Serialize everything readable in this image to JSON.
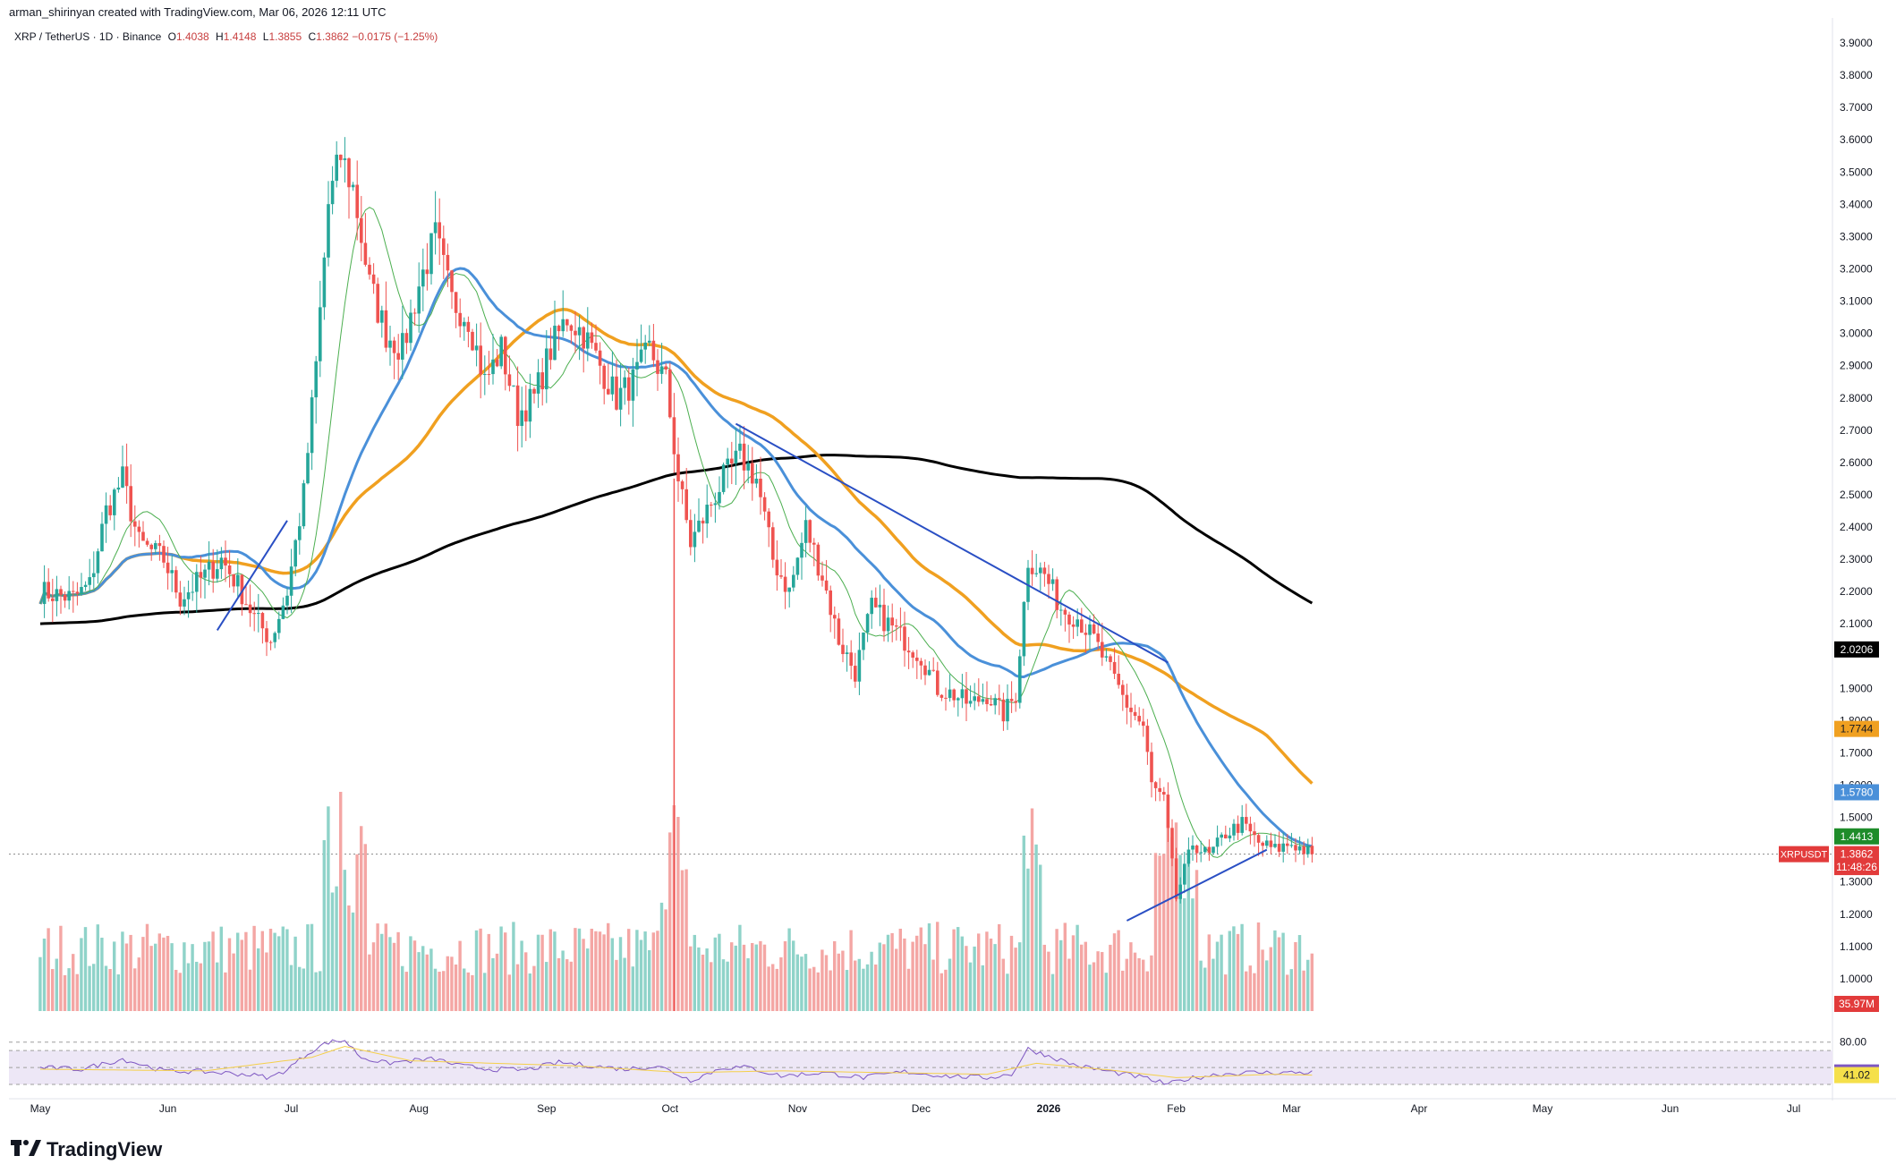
{
  "header": {
    "created_by": "arman_shirinyan created with TradingView.com, Mar 06, 2026 12:11 UTC"
  },
  "legend": {
    "symbol": "XRP / TetherUS · 1D · Binance",
    "o_label": "O",
    "o_value": "1.4038",
    "h_label": "H",
    "h_value": "1.4148",
    "l_label": "L",
    "l_value": "1.3855",
    "c_label": "C",
    "c_value": "1.3862",
    "change": "−0.0175 (−1.25%)"
  },
  "brand": {
    "logo_icon": "tradingview-logo-icon",
    "name": "TradingView"
  },
  "colors": {
    "up": "#26a69a",
    "down": "#ef5350",
    "ma_fast": "#4caf50",
    "ma_mid": "#4a90d9",
    "ma_slow": "#f0a020",
    "ma_long": "#000000",
    "rsi": "#7e57c2",
    "trendline": "#2a4fc4"
  },
  "chart_data": {
    "type": "candlestick",
    "price_axis": {
      "ylim": [
        0.9,
        3.95
      ],
      "ticks": [
        "3.9000",
        "3.8000",
        "3.7000",
        "3.6000",
        "3.5000",
        "3.4000",
        "3.3000",
        "3.2000",
        "3.1000",
        "3.0000",
        "2.9000",
        "2.8000",
        "2.7000",
        "2.6000",
        "2.5000",
        "2.4000",
        "2.3000",
        "2.2000",
        "2.1000",
        "1.9000",
        "1.8000",
        "1.7000",
        "1.6000",
        "1.5000",
        "1.3000",
        "1.2000",
        "1.1000",
        "1.0000"
      ]
    },
    "time_axis": {
      "labels": [
        "May",
        "Jun",
        "Jul",
        "Aug",
        "Sep",
        "Oct",
        "Nov",
        "Dec",
        "2026",
        "Feb",
        "Mar",
        "Apr",
        "May",
        "Jun",
        "Jul"
      ],
      "label_day_index": [
        0,
        31,
        61,
        92,
        123,
        153,
        184,
        214,
        245,
        276,
        304,
        335,
        365,
        396,
        426
      ],
      "last_day_index": 309
    },
    "badges": [
      {
        "text": "2.0206",
        "value": 2.0206,
        "color": "#000000",
        "fg": "#ffffff"
      },
      {
        "text": "1.7744",
        "value": 1.7744,
        "color": "#f0a020",
        "fg": "#131722"
      },
      {
        "text": "1.5780",
        "value": 1.578,
        "color": "#4a90d9",
        "fg": "#ffffff"
      },
      {
        "text": "1.4413",
        "value": 1.4413,
        "color": "#1e8c2a",
        "fg": "#ffffff"
      },
      {
        "text": "1.3862",
        "value": 1.3862,
        "color": "#e23b3b",
        "fg": "#ffffff"
      },
      {
        "text": "11:48:26",
        "value": 1.3462,
        "color": "#e23b3b",
        "fg": "#ffffff"
      }
    ],
    "symbol_badge": {
      "text": "XRPUSDT",
      "value": 1.3862,
      "color": "#e23b3b"
    },
    "volume_badge": {
      "text": "35.97M",
      "color": "#e23b3b"
    },
    "rsi": {
      "levels": [
        "80.00"
      ],
      "badges": [
        {
          "text": "44.14",
          "value": 44.14,
          "color": "#7e57c2",
          "fg": "#ffffff"
        },
        {
          "text": "41.02",
          "value": 41.02,
          "color": "#f5e04a",
          "fg": "#131722"
        }
      ]
    },
    "price_path": [
      [
        0,
        2.2
      ],
      [
        8,
        2.18
      ],
      [
        12,
        2.22
      ],
      [
        16,
        2.45
      ],
      [
        20,
        2.55
      ],
      [
        24,
        2.35
      ],
      [
        30,
        2.3
      ],
      [
        34,
        2.18
      ],
      [
        40,
        2.25
      ],
      [
        44,
        2.3
      ],
      [
        48,
        2.22
      ],
      [
        52,
        2.12
      ],
      [
        56,
        2.05
      ],
      [
        60,
        2.2
      ],
      [
        64,
        2.5
      ],
      [
        67,
        2.9
      ],
      [
        70,
        3.4
      ],
      [
        73,
        3.55
      ],
      [
        76,
        3.45
      ],
      [
        80,
        3.15
      ],
      [
        84,
        3.0
      ],
      [
        88,
        2.95
      ],
      [
        92,
        3.15
      ],
      [
        96,
        3.3
      ],
      [
        100,
        3.1
      ],
      [
        104,
        3.05
      ],
      [
        108,
        2.85
      ],
      [
        112,
        2.95
      ],
      [
        116,
        2.75
      ],
      [
        120,
        2.8
      ],
      [
        124,
        2.95
      ],
      [
        128,
        3.05
      ],
      [
        132,
        3.0
      ],
      [
        136,
        2.9
      ],
      [
        140,
        2.8
      ],
      [
        144,
        2.85
      ],
      [
        148,
        2.95
      ],
      [
        152,
        2.85
      ],
      [
        155,
        2.55
      ],
      [
        158,
        2.35
      ],
      [
        162,
        2.45
      ],
      [
        166,
        2.55
      ],
      [
        170,
        2.62
      ],
      [
        174,
        2.55
      ],
      [
        178,
        2.3
      ],
      [
        182,
        2.2
      ],
      [
        186,
        2.4
      ],
      [
        190,
        2.25
      ],
      [
        194,
        2.05
      ],
      [
        198,
        1.95
      ],
      [
        202,
        2.15
      ],
      [
        206,
        2.1
      ],
      [
        210,
        2.05
      ],
      [
        214,
        2.0
      ],
      [
        218,
        1.9
      ],
      [
        222,
        1.88
      ],
      [
        226,
        1.85
      ],
      [
        230,
        1.88
      ],
      [
        234,
        1.82
      ],
      [
        237,
        1.88
      ],
      [
        240,
        2.3
      ],
      [
        244,
        2.25
      ],
      [
        248,
        2.15
      ],
      [
        252,
        2.12
      ],
      [
        256,
        2.05
      ],
      [
        260,
        1.95
      ],
      [
        264,
        1.85
      ],
      [
        268,
        1.78
      ],
      [
        270,
        1.6
      ],
      [
        273,
        1.55
      ],
      [
        276,
        1.25
      ],
      [
        280,
        1.42
      ],
      [
        284,
        1.38
      ],
      [
        288,
        1.45
      ],
      [
        292,
        1.48
      ],
      [
        296,
        1.42
      ],
      [
        300,
        1.4
      ],
      [
        304,
        1.42
      ],
      [
        309,
        1.386
      ]
    ],
    "rsi_path": [
      [
        0,
        50
      ],
      [
        10,
        48
      ],
      [
        20,
        60
      ],
      [
        30,
        46
      ],
      [
        40,
        45
      ],
      [
        50,
        42
      ],
      [
        56,
        38
      ],
      [
        60,
        48
      ],
      [
        66,
        70
      ],
      [
        70,
        80
      ],
      [
        74,
        82
      ],
      [
        78,
        62
      ],
      [
        84,
        55
      ],
      [
        90,
        58
      ],
      [
        96,
        60
      ],
      [
        102,
        52
      ],
      [
        110,
        48
      ],
      [
        118,
        47
      ],
      [
        126,
        56
      ],
      [
        134,
        52
      ],
      [
        142,
        48
      ],
      [
        150,
        52
      ],
      [
        154,
        44
      ],
      [
        158,
        35
      ],
      [
        166,
        50
      ],
      [
        172,
        50
      ],
      [
        180,
        40
      ],
      [
        190,
        44
      ],
      [
        200,
        38
      ],
      [
        210,
        45
      ],
      [
        220,
        40
      ],
      [
        230,
        38
      ],
      [
        236,
        42
      ],
      [
        240,
        72
      ],
      [
        246,
        62
      ],
      [
        252,
        52
      ],
      [
        260,
        45
      ],
      [
        268,
        38
      ],
      [
        274,
        30
      ],
      [
        278,
        36
      ],
      [
        286,
        42
      ],
      [
        294,
        44
      ],
      [
        302,
        44
      ],
      [
        309,
        44.14
      ]
    ],
    "rsi_ma_path": [
      [
        0,
        48
      ],
      [
        40,
        46
      ],
      [
        66,
        62
      ],
      [
        74,
        75
      ],
      [
        90,
        58
      ],
      [
        130,
        52
      ],
      [
        156,
        44
      ],
      [
        180,
        46
      ],
      [
        230,
        42
      ],
      [
        242,
        55
      ],
      [
        260,
        47
      ],
      [
        276,
        38
      ],
      [
        300,
        42
      ],
      [
        309,
        41.02
      ]
    ]
  }
}
